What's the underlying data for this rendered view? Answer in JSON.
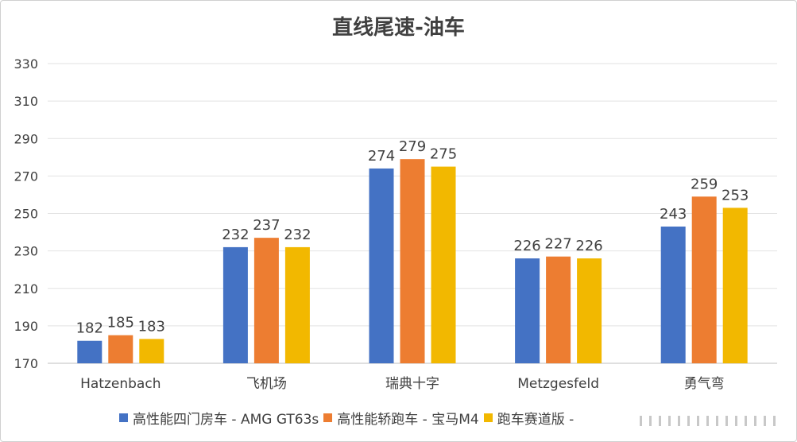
{
  "chart_data": {
    "type": "bar",
    "title": "直线尾速-油车",
    "categories": [
      "Hatzenbach",
      "飞机场",
      "瑞典十字",
      "Metzgesfeld",
      "勇气弯"
    ],
    "series": [
      {
        "name": "高性能四门房车 - AMG GT63s",
        "color": "#4472c4",
        "values": [
          182,
          232,
          274,
          226,
          243
        ]
      },
      {
        "name": "高性能轿跑车 - 宝马M4",
        "color": "#ed7d31",
        "values": [
          185,
          237,
          279,
          227,
          259
        ]
      },
      {
        "name": "跑车赛道版 -",
        "color": "#f2b800",
        "values": [
          183,
          232,
          275,
          226,
          253
        ]
      }
    ],
    "yticks": [
      170,
      190,
      210,
      230,
      250,
      270,
      290,
      310,
      330
    ],
    "ylim": [
      170,
      330
    ],
    "grid": true,
    "legend": "bottom"
  }
}
